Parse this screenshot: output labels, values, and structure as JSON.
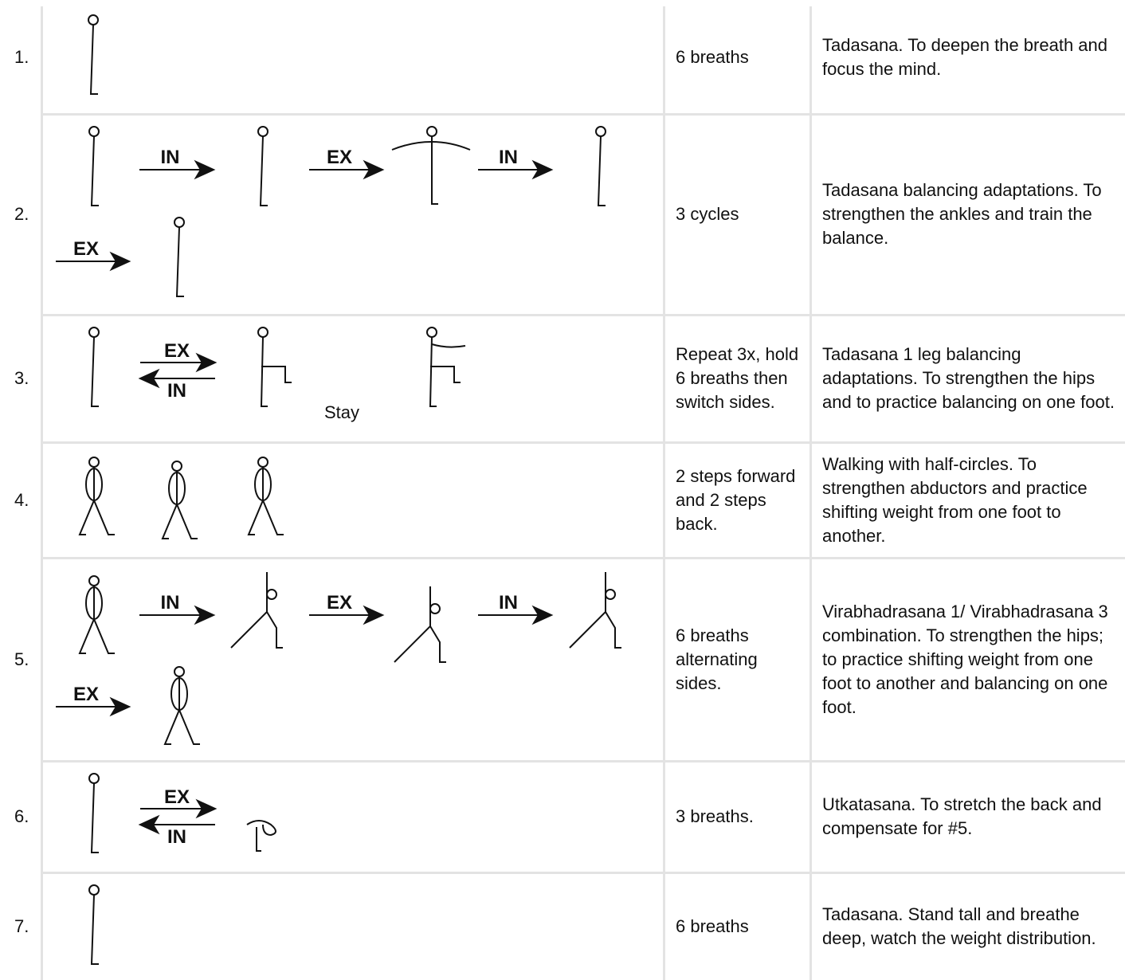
{
  "table": {
    "rows": [
      {
        "number": "1.",
        "labels": [],
        "duration": "6 breaths",
        "description": "Tadasana. To deepen the breath and focus the mind."
      },
      {
        "number": "2.",
        "labels": [
          "IN",
          "EX",
          "IN",
          "EX"
        ],
        "duration": "3 cycles",
        "description": "Tadasana balancing adaptations. To strengthen the ankles and train the balance."
      },
      {
        "number": "3.",
        "labels": [
          "EX",
          "IN",
          "Stay"
        ],
        "duration": "Repeat 3x, hold 6 breaths then switch sides.",
        "description": "Tadasana 1 leg balancing adaptations. To strengthen the hips and to practice balancing on one foot."
      },
      {
        "number": "4.",
        "labels": [],
        "duration": "2 steps forward and 2 steps back.",
        "description": "Walking with half-circles. To strengthen abductors and practice shifting weight from one foot to another."
      },
      {
        "number": "5.",
        "labels": [
          "IN",
          "EX",
          "IN",
          "EX"
        ],
        "duration": "6 breaths alternating sides.",
        "description": "Virabhadrasana 1/ Virabhadrasana 3 combination. To strengthen the hips; to practice shifting weight from one foot to another and balancing on one foot."
      },
      {
        "number": "6.",
        "labels": [
          "EX",
          "IN"
        ],
        "duration": "3 breaths.",
        "description": "Utkatasana. To stretch the back and compensate for #5."
      },
      {
        "number": "7.",
        "labels": [],
        "duration": "6 breaths",
        "description": "Tadasana. Stand tall and breathe deep, watch the weight distribution."
      }
    ]
  }
}
